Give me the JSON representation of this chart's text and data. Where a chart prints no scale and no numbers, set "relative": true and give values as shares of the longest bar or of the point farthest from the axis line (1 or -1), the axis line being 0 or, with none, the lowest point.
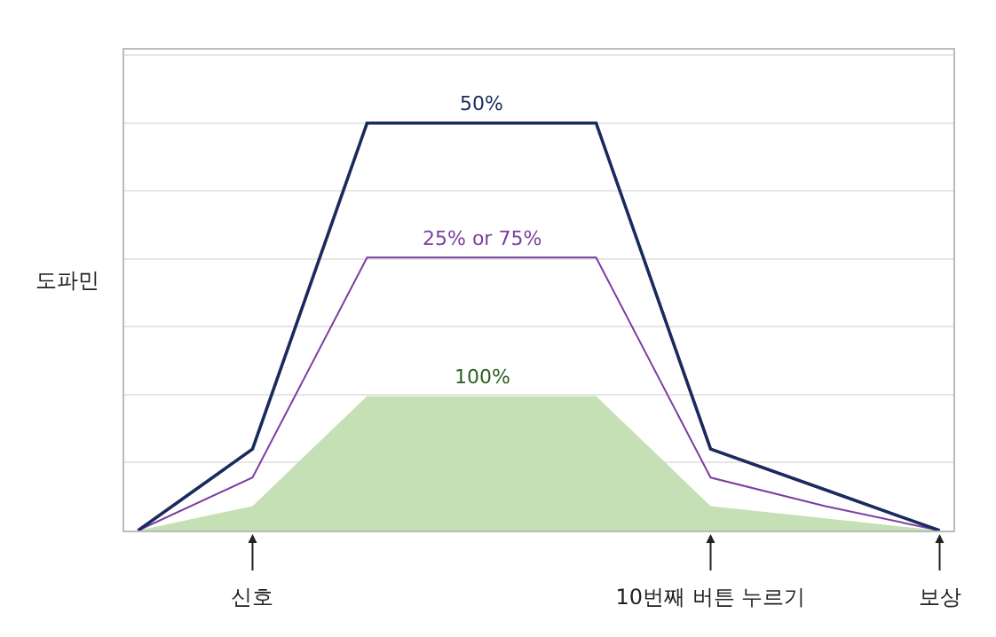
{
  "chart_data": {
    "type": "line",
    "relative": true,
    "ylabel": "도파민",
    "categories": [
      null,
      "신호",
      null,
      null,
      null,
      "10번째 버튼 누르기",
      null,
      "보상"
    ],
    "series": [
      {
        "name": "100%",
        "type": "area",
        "color": "#c5e0b4",
        "values": [
          0,
          0.06,
          0.33,
          0.33,
          0.33,
          0.06,
          0.03,
          0
        ]
      },
      {
        "name": "25% or 75%",
        "color": "#7b3fa0",
        "values": [
          0,
          0.13,
          0.67,
          0.67,
          0.67,
          0.13,
          0.06,
          0
        ]
      },
      {
        "name": "50%",
        "color": "#1a2a5e",
        "values": [
          0,
          0.2,
          1,
          1,
          1,
          0.2,
          0.1,
          0
        ]
      }
    ],
    "grid": "y",
    "legend": false,
    "marker": "none"
  }
}
